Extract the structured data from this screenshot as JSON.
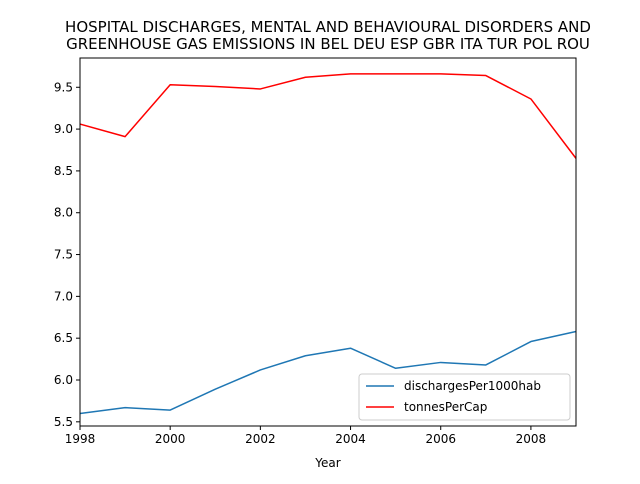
{
  "chart_data": {
    "type": "line",
    "title_lines": [
      "HOSPITAL DISCHARGES, MENTAL AND BEHAVIOURAL DISORDERS AND",
      "GREENHOUSE GAS EMISSIONS IN BEL DEU ESP GBR ITA TUR POL ROU"
    ],
    "xlabel": "Year",
    "ylabel": "",
    "x": [
      1998,
      1999,
      2000,
      2001,
      2002,
      2003,
      2004,
      2005,
      2006,
      2007,
      2008,
      2009
    ],
    "xlim": [
      1998,
      2009
    ],
    "ylim": [
      5.45,
      9.85
    ],
    "x_ticks": [
      1998,
      2000,
      2002,
      2004,
      2006,
      2008
    ],
    "x_tick_labels": [
      "1998",
      "2000",
      "2002",
      "2004",
      "2006",
      "2008"
    ],
    "y_ticks": [
      5.5,
      6.0,
      6.5,
      7.0,
      7.5,
      8.0,
      8.5,
      9.0,
      9.5
    ],
    "y_tick_labels": [
      "5.5",
      "6.0",
      "6.5",
      "7.0",
      "7.5",
      "8.0",
      "8.5",
      "9.0",
      "9.5"
    ],
    "grid": false,
    "legend_position": "lower-right",
    "series": [
      {
        "name": "dischargesPer1000hab",
        "color": "#1f77b4",
        "values": [
          5.6,
          5.67,
          5.64,
          5.89,
          6.12,
          6.29,
          6.38,
          6.14,
          6.21,
          6.18,
          6.46,
          6.58
        ]
      },
      {
        "name": "tonnesPerCap",
        "color": "#ff0000",
        "values": [
          9.06,
          8.91,
          9.53,
          9.51,
          9.48,
          9.62,
          9.66,
          9.66,
          9.66,
          9.64,
          9.36,
          8.65
        ]
      }
    ]
  }
}
